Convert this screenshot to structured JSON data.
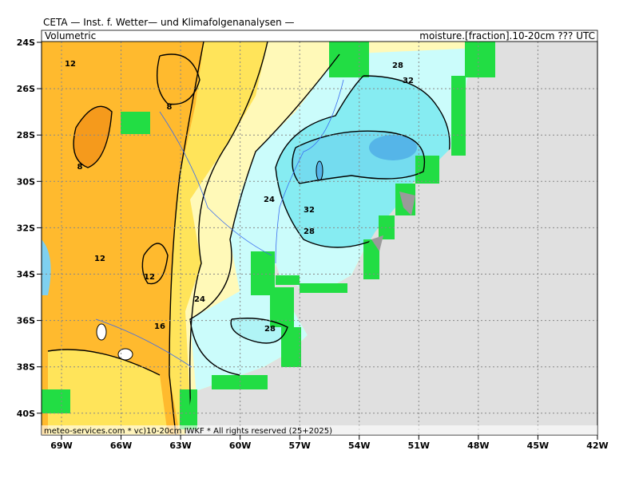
{
  "header": {
    "title": "CETA — Inst. f. Wetter— und Klimafolgenanalysen —",
    "left": "Volumetric",
    "right": "moisture.[fraction].10-20cm ??? UTC"
  },
  "axes": {
    "lat_ticks": [
      "24S",
      "26S",
      "28S",
      "30S",
      "32S",
      "34S",
      "36S",
      "38S",
      "40S"
    ],
    "lon_ticks": [
      "69W",
      "66W",
      "63W",
      "60W",
      "57W",
      "54W",
      "51W",
      "48W",
      "45W",
      "42W"
    ]
  },
  "contour_labels": [
    "12",
    "8",
    "8",
    "12",
    "12",
    "16",
    "24",
    "24",
    "28",
    "32",
    "32",
    "28",
    "28"
  ],
  "footer": "meteo-services.com * vc)10-20cm IWKF * All rights reserved (25+2025)"
}
